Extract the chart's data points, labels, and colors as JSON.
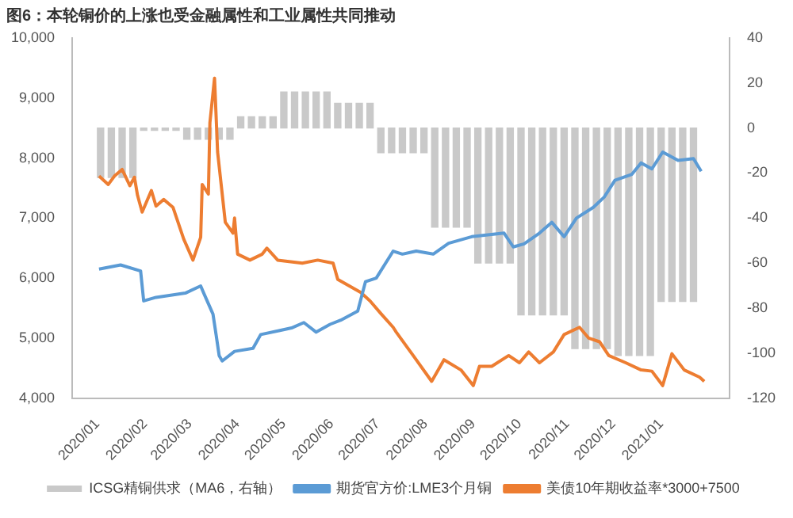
{
  "chart_data": {
    "type": "line",
    "title": "图6：本轮铜价的上涨也受金融属性和工业属性共同推动",
    "legend": "bottom",
    "xlim": [
      "2020-01-01",
      "2021-01-29"
    ],
    "xticks": [
      {
        "value": "2020-01-01",
        "label": "2020/01"
      },
      {
        "value": "2020-02-01",
        "label": "2020/02"
      },
      {
        "value": "2020-03-01",
        "label": "2020/03"
      },
      {
        "value": "2020-04-01",
        "label": "2020/04"
      },
      {
        "value": "2020-05-01",
        "label": "2020/05"
      },
      {
        "value": "2020-06-01",
        "label": "2020/06"
      },
      {
        "value": "2020-07-01",
        "label": "2020/07"
      },
      {
        "value": "2020-08-01",
        "label": "2020/08"
      },
      {
        "value": "2020-09-01",
        "label": "2020/09"
      },
      {
        "value": "2020-10-01",
        "label": "2020/10"
      },
      {
        "value": "2020-11-01",
        "label": "2020/11"
      },
      {
        "value": "2020-12-01",
        "label": "2020/12"
      },
      {
        "value": "2021-01-01",
        "label": "2021/01"
      }
    ],
    "ylim": [
      4000,
      10000
    ],
    "yticks": [
      {
        "value": 4000,
        "label": "4,000"
      },
      {
        "value": 5000,
        "label": "5,000"
      },
      {
        "value": 6000,
        "label": "6,000"
      },
      {
        "value": 7000,
        "label": "7,000"
      },
      {
        "value": 8000,
        "label": "8,000"
      },
      {
        "value": 9000,
        "label": "9,000"
      },
      {
        "value": 10000,
        "label": "10,000"
      }
    ],
    "y2lim": [
      -120,
      40
    ],
    "y2ticks": [
      -120,
      -100,
      -80,
      -60,
      -40,
      -20,
      0,
      20,
      40
    ],
    "series": [
      {
        "name": "ICSG精铜供求（MA6，右轴）",
        "type": "bar",
        "axis": "y2",
        "color": "#c9c9c9",
        "x": [
          "2020-01-03",
          "2020-01-10",
          "2020-01-17",
          "2020-01-24",
          "2020-01-31",
          "2020-02-07",
          "2020-02-14",
          "2020-02-21",
          "2020-02-28",
          "2020-03-06",
          "2020-03-13",
          "2020-03-20",
          "2020-03-27",
          "2020-04-03",
          "2020-04-10",
          "2020-04-17",
          "2020-04-24",
          "2020-05-01",
          "2020-05-08",
          "2020-05-15",
          "2020-05-22",
          "2020-05-29",
          "2020-06-05",
          "2020-06-12",
          "2020-06-19",
          "2020-06-26",
          "2020-07-03",
          "2020-07-10",
          "2020-07-17",
          "2020-07-24",
          "2020-07-31",
          "2020-08-07",
          "2020-08-14",
          "2020-08-21",
          "2020-08-28",
          "2020-09-04",
          "2020-09-11",
          "2020-09-18",
          "2020-09-25",
          "2020-10-02",
          "2020-10-09",
          "2020-10-16",
          "2020-10-23",
          "2020-10-30",
          "2020-11-06",
          "2020-11-13",
          "2020-11-20",
          "2020-11-27",
          "2020-12-04",
          "2020-12-11",
          "2020-12-18",
          "2020-12-25",
          "2021-01-01",
          "2021-01-08",
          "2021-01-15",
          "2021-01-22"
        ],
        "values": [
          -22,
          -22,
          -22,
          -22,
          -1,
          -1,
          -1,
          -1,
          -5,
          -5,
          -5,
          -5,
          -5,
          5,
          5,
          5,
          5,
          16,
          16,
          16,
          16,
          16,
          11,
          11,
          11,
          11,
          -11,
          -11,
          -11,
          -11,
          -11,
          -44,
          -44,
          -44,
          -44,
          -60,
          -60,
          -60,
          -60,
          -83,
          -83,
          -83,
          -83,
          -83,
          -98,
          -98,
          -98,
          -98,
          -101,
          -101,
          -101,
          -101,
          -77,
          -77,
          -77,
          -77
        ]
      },
      {
        "name": "期货官方价:LME3个月铜",
        "color": "#5b9bd5",
        "x": [
          "2020-01-02",
          "2020-01-16",
          "2020-01-29",
          "2020-01-31",
          "2020-02-08",
          "2020-02-27",
          "2020-03-08",
          "2020-03-10",
          "2020-03-16",
          "2020-03-18",
          "2020-03-20",
          "2020-03-22",
          "2020-03-30",
          "2020-04-11",
          "2020-04-16",
          "2020-04-29",
          "2020-05-06",
          "2020-05-14",
          "2020-05-22",
          "2020-05-31",
          "2020-06-07",
          "2020-06-18",
          "2020-06-23",
          "2020-06-30",
          "2020-07-11",
          "2020-07-17",
          "2020-07-26",
          "2020-08-06",
          "2020-08-16",
          "2020-08-31",
          "2020-09-21",
          "2020-09-27",
          "2020-10-04",
          "2020-10-14",
          "2020-10-22",
          "2020-10-30",
          "2020-11-07",
          "2020-11-18",
          "2020-11-25",
          "2020-12-02",
          "2020-12-13",
          "2020-12-19",
          "2020-12-26",
          "2021-01-02",
          "2021-01-12",
          "2021-01-22",
          "2021-01-27"
        ],
        "values": [
          6150,
          6220,
          6120,
          5620,
          5680,
          5750,
          5870,
          5750,
          5400,
          5060,
          4710,
          4620,
          4780,
          4830,
          5060,
          5130,
          5170,
          5260,
          5100,
          5230,
          5300,
          5450,
          5940,
          6000,
          6450,
          6400,
          6450,
          6400,
          6580,
          6690,
          6750,
          6520,
          6570,
          6750,
          6930,
          6690,
          7000,
          7180,
          7350,
          7630,
          7730,
          7920,
          7820,
          8100,
          7960,
          7990,
          7780
        ]
      },
      {
        "name": "美债10年期收益率*3000+7500",
        "color": "#ed7d31",
        "x": [
          "2020-01-02",
          "2020-01-08",
          "2020-01-12",
          "2020-01-17",
          "2020-01-22",
          "2020-01-25",
          "2020-01-27",
          "2020-01-30",
          "2020-02-05",
          "2020-02-08",
          "2020-02-13",
          "2020-02-19",
          "2020-02-26",
          "2020-03-03",
          "2020-03-08",
          "2020-03-09",
          "2020-03-13",
          "2020-03-14",
          "2020-03-17",
          "2020-03-19",
          "2020-03-24",
          "2020-03-29",
          "2020-03-30",
          "2020-04-01",
          "2020-04-09",
          "2020-04-17",
          "2020-04-20",
          "2020-04-27",
          "2020-05-13",
          "2020-05-23",
          "2020-06-02",
          "2020-06-05",
          "2020-06-20",
          "2020-06-26",
          "2020-07-03",
          "2020-07-11",
          "2020-07-13",
          "2020-07-24",
          "2020-08-05",
          "2020-08-13",
          "2020-08-24",
          "2020-09-01",
          "2020-09-05",
          "2020-09-13",
          "2020-09-24",
          "2020-10-01",
          "2020-10-07",
          "2020-10-14",
          "2020-10-23",
          "2020-10-30",
          "2020-11-09",
          "2020-11-15",
          "2020-11-22",
          "2020-11-28",
          "2020-12-09",
          "2020-12-19",
          "2020-12-26",
          "2021-01-02",
          "2021-01-08",
          "2021-01-16",
          "2021-01-26",
          "2021-01-29"
        ],
        "values": [
          7700,
          7560,
          7700,
          7810,
          7540,
          7680,
          7380,
          7100,
          7460,
          7200,
          7310,
          7180,
          6650,
          6300,
          6680,
          7560,
          7400,
          8590,
          9330,
          8100,
          6930,
          6750,
          7000,
          6400,
          6300,
          6400,
          6500,
          6300,
          6250,
          6300,
          6250,
          5980,
          5760,
          5620,
          5410,
          5180,
          5100,
          4710,
          4280,
          4640,
          4470,
          4210,
          4530,
          4530,
          4710,
          4590,
          4770,
          4590,
          4770,
          5060,
          5180,
          5000,
          4940,
          4710,
          4590,
          4470,
          4450,
          4210,
          4740,
          4470,
          4350,
          4280
        ]
      }
    ]
  }
}
